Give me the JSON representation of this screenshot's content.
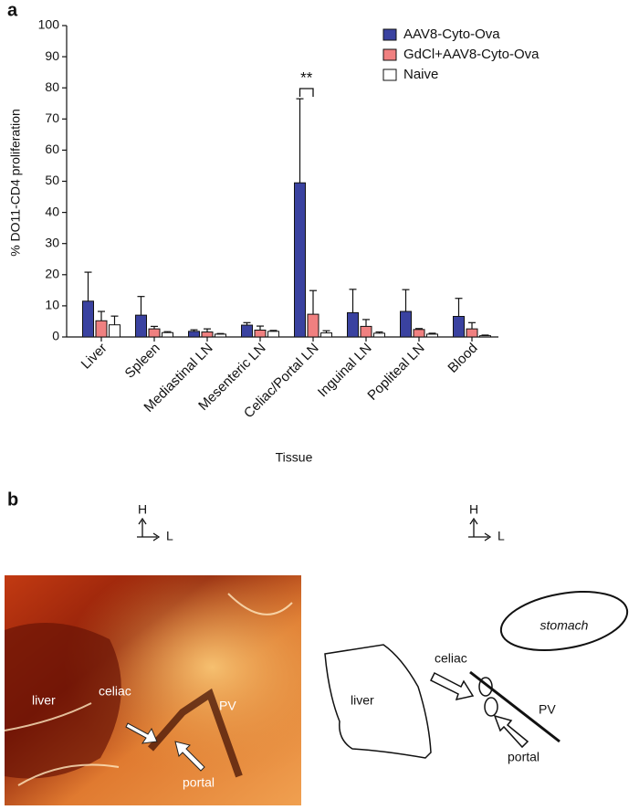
{
  "chart_data": {
    "type": "bar",
    "y_label": "% DO11-CD4 proliferation",
    "x_label": "Tissue",
    "categories": [
      "Liver",
      "Spleen",
      "Mediastinal LN",
      "Mesenteric LN",
      "Celiac/Portal LN",
      "Inguinal LN",
      "Popliteal LN",
      "Blood"
    ],
    "series": [
      {
        "name": "AAV8-Cyto-Ova",
        "color": "#3a42a0",
        "values": [
          11.5,
          7,
          1.8,
          3.8,
          49.5,
          7.8,
          8.2,
          6.6
        ],
        "errors": [
          9.3,
          6,
          0.5,
          0.8,
          27,
          7.5,
          7,
          5.8
        ]
      },
      {
        "name": "GdCl+AAV8-Cyto-Ova",
        "color": "#f08080",
        "values": [
          5.2,
          2.6,
          1.6,
          2.2,
          7.3,
          3.4,
          2.4,
          2.6
        ],
        "errors": [
          3,
          0.8,
          1,
          1.3,
          7.6,
          2.2,
          0.3,
          2
        ]
      },
      {
        "name": "Naive",
        "color": "#ffffff",
        "values": [
          3.9,
          1.4,
          0.9,
          1.8,
          1.3,
          1.2,
          0.9,
          0.4
        ],
        "errors": [
          2.8,
          0.3,
          0.2,
          0.3,
          0.7,
          0.4,
          0.3,
          0.2
        ]
      }
    ],
    "ylim": [
      0,
      100
    ],
    "yticks": [
      0,
      10,
      20,
      30,
      40,
      50,
      60,
      70,
      80,
      90,
      100
    ],
    "legend": "upper right",
    "annotation": "**"
  },
  "panel_labels": [
    "a",
    "b"
  ],
  "panel_b": {
    "orientation": {
      "up": "H",
      "right": "L"
    },
    "photo": {
      "liver": "liver",
      "celiac": "celiac",
      "pv": "PV",
      "portal": "portal"
    },
    "diagram": {
      "stomach": "stomach",
      "liver": "liver",
      "celiac": "celiac",
      "pv": "PV",
      "portal": "portal"
    }
  }
}
